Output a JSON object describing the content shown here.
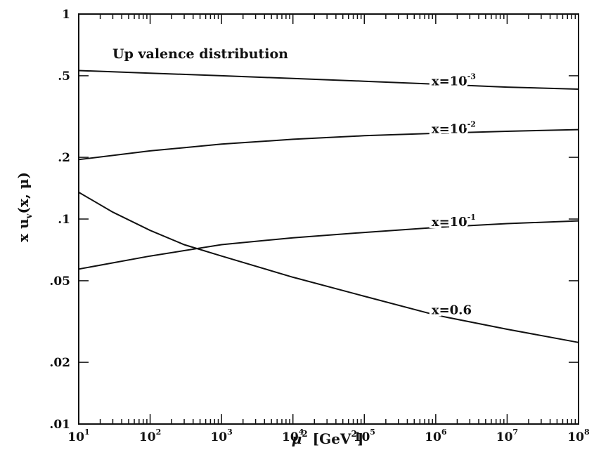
{
  "chart_data": {
    "type": "line",
    "title": "Up valence distribution",
    "xlabel": {
      "base": "μ",
      "sup": "2",
      "unit_open": " [GeV",
      "unit_sup": "2",
      "unit_close": "]"
    },
    "ylabel": {
      "pre": "x u",
      "sub": "v",
      "post": "(x, μ)"
    },
    "x_scale": "log",
    "y_scale": "log",
    "xlim": [
      10,
      100000000
    ],
    "ylim": [
      0.01,
      1
    ],
    "x_ticks": [
      {
        "base": "10",
        "exp": "1",
        "value": 10
      },
      {
        "base": "10",
        "exp": "2",
        "value": 100
      },
      {
        "base": "10",
        "exp": "3",
        "value": 1000
      },
      {
        "base": "10",
        "exp": "4",
        "value": 10000
      },
      {
        "base": "10",
        "exp": "5",
        "value": 100000
      },
      {
        "base": "10",
        "exp": "6",
        "value": 1000000
      },
      {
        "base": "10",
        "exp": "7",
        "value": 10000000
      },
      {
        "base": "10",
        "exp": "8",
        "value": 100000000
      }
    ],
    "y_ticks": [
      {
        "label": ".01",
        "value": 0.01
      },
      {
        "label": ".02",
        "value": 0.02
      },
      {
        "label": ".05",
        "value": 0.05
      },
      {
        "label": ".1",
        "value": 0.1
      },
      {
        "label": ".2",
        "value": 0.2
      },
      {
        "label": ".5",
        "value": 0.5
      },
      {
        "label": "1",
        "value": 1
      }
    ],
    "series": [
      {
        "label_pre": "x=10",
        "label_exp": "-3",
        "label_at": [
          1000000,
          0.47
        ],
        "x": [
          10,
          100,
          1000,
          10000,
          100000,
          1000000,
          10000000,
          100000000
        ],
        "y": [
          0.53,
          0.515,
          0.5,
          0.485,
          0.47,
          0.455,
          0.44,
          0.43
        ]
      },
      {
        "label_pre": "x=10",
        "label_exp": "-2",
        "label_at": [
          1000000,
          0.275
        ],
        "x": [
          10,
          100,
          1000,
          10000,
          100000,
          1000000,
          10000000,
          100000000
        ],
        "y": [
          0.195,
          0.215,
          0.232,
          0.245,
          0.255,
          0.262,
          0.268,
          0.273
        ]
      },
      {
        "label_pre": "x=10",
        "label_exp": "-1",
        "label_at": [
          1000000,
          0.097
        ],
        "x": [
          10,
          100,
          1000,
          10000,
          100000,
          1000000,
          10000000,
          100000000
        ],
        "y": [
          0.057,
          0.066,
          0.075,
          0.081,
          0.086,
          0.091,
          0.095,
          0.098
        ]
      },
      {
        "label_pre": "x=0.6",
        "label_exp": "",
        "label_at": [
          1000000,
          0.036
        ],
        "x": [
          10,
          30,
          100,
          300,
          1000,
          10000,
          100000,
          1000000,
          10000000,
          100000000
        ],
        "y": [
          0.135,
          0.108,
          0.088,
          0.075,
          0.066,
          0.052,
          0.042,
          0.034,
          0.029,
          0.025
        ]
      }
    ],
    "grid": false,
    "legend": "none"
  }
}
